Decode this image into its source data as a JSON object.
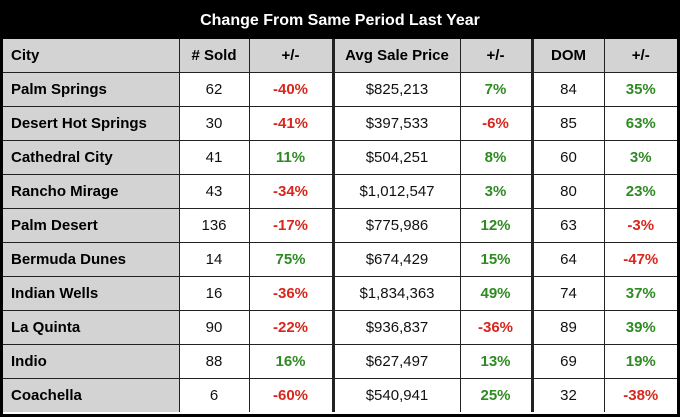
{
  "title": "Change From Same Period Last Year",
  "headers": [
    "City",
    "# Sold",
    "+/-",
    "Avg Sale Price",
    "+/-",
    "DOM",
    "+/-"
  ],
  "colors": {
    "negative": "#d9261c",
    "positive": "#2e8b22",
    "header_bg": "#d3d3d3"
  },
  "rows": [
    {
      "city": "Palm Springs",
      "sold": "62",
      "sold_chg": "-40%",
      "price": "$825,213",
      "price_chg": "7%",
      "dom": "84",
      "dom_chg": "35%"
    },
    {
      "city": "Desert Hot Springs",
      "sold": "30",
      "sold_chg": "-41%",
      "price": "$397,533",
      "price_chg": "-6%",
      "dom": "85",
      "dom_chg": "63%"
    },
    {
      "city": "Cathedral City",
      "sold": "41",
      "sold_chg": "11%",
      "price": "$504,251",
      "price_chg": "8%",
      "dom": "60",
      "dom_chg": "3%"
    },
    {
      "city": "Rancho Mirage",
      "sold": "43",
      "sold_chg": "-34%",
      "price": "$1,012,547",
      "price_chg": "3%",
      "dom": "80",
      "dom_chg": "23%"
    },
    {
      "city": "Palm Desert",
      "sold": "136",
      "sold_chg": "-17%",
      "price": "$775,986",
      "price_chg": "12%",
      "dom": "63",
      "dom_chg": "-3%"
    },
    {
      "city": "Bermuda Dunes",
      "sold": "14",
      "sold_chg": "75%",
      "price": "$674,429",
      "price_chg": "15%",
      "dom": "64",
      "dom_chg": "-47%"
    },
    {
      "city": "Indian Wells",
      "sold": "16",
      "sold_chg": "-36%",
      "price": "$1,834,363",
      "price_chg": "49%",
      "dom": "74",
      "dom_chg": "37%"
    },
    {
      "city": "La Quinta",
      "sold": "90",
      "sold_chg": "-22%",
      "price": "$936,837",
      "price_chg": "-36%",
      "dom": "89",
      "dom_chg": "39%"
    },
    {
      "city": "Indio",
      "sold": "88",
      "sold_chg": "16%",
      "price": "$627,497",
      "price_chg": "13%",
      "dom": "69",
      "dom_chg": "19%"
    },
    {
      "city": "Coachella",
      "sold": "6",
      "sold_chg": "-60%",
      "price": "$540,941",
      "price_chg": "25%",
      "dom": "32",
      "dom_chg": "-38%"
    }
  ]
}
